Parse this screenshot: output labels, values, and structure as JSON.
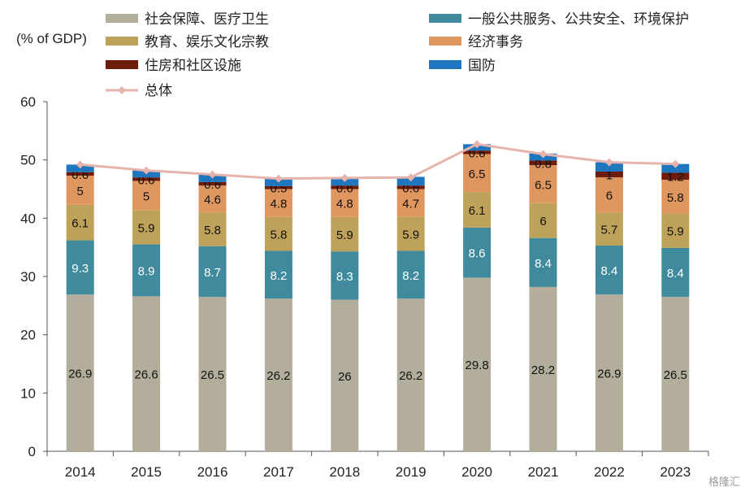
{
  "chart_data": {
    "type": "bar",
    "stacked": true,
    "ylabel": "(% of GDP)",
    "ylim": [
      0,
      60
    ],
    "yticks": [
      "0",
      "10",
      "20",
      "30",
      "40",
      "50",
      "60"
    ],
    "categories": [
      "2014",
      "2015",
      "2016",
      "2017",
      "2018",
      "2019",
      "2020",
      "2021",
      "2022",
      "2023"
    ],
    "series": [
      {
        "name": "社会保障、医疗卫生",
        "color": "#b3ae9c",
        "values": [
          26.9,
          26.6,
          26.5,
          26.2,
          26,
          26.2,
          29.8,
          28.2,
          26.9,
          26.5
        ],
        "labels": [
          "26.9",
          "26.6",
          "26.5",
          "26.2",
          "26",
          "26.2",
          "29.8",
          "28.2",
          "26.9",
          "26.5"
        ]
      },
      {
        "name": "一般公共服务、公共安全、环境保护",
        "color": "#3f8a9d",
        "values": [
          9.3,
          8.9,
          8.7,
          8.2,
          8.3,
          8.2,
          8.6,
          8.4,
          8.4,
          8.4
        ],
        "labels": [
          "9.3",
          "8.9",
          "8.7",
          "8.2",
          "8.3",
          "8.2",
          "8.6",
          "8.4",
          "8.4",
          "8.4"
        ]
      },
      {
        "name": "教育、娱乐文化宗教",
        "color": "#bea25a",
        "values": [
          6.1,
          5.9,
          5.8,
          5.8,
          5.9,
          5.9,
          6.1,
          6,
          5.7,
          5.9
        ],
        "labels": [
          "6.1",
          "5.9",
          "5.8",
          "5.8",
          "5.9",
          "5.9",
          "6.1",
          "6",
          "5.7",
          "5.9"
        ]
      },
      {
        "name": "经济事务",
        "color": "#e0975f",
        "values": [
          5,
          5,
          4.6,
          4.8,
          4.8,
          4.7,
          6.5,
          6.5,
          6,
          5.8
        ],
        "labels": [
          "5",
          "5",
          "4.6",
          "4.8",
          "4.8",
          "4.7",
          "6.5",
          "6.5",
          "6",
          "5.8"
        ]
      },
      {
        "name": "住房和社区设施",
        "color": "#6e1d0c",
        "values": [
          0.6,
          0.6,
          0.6,
          0.5,
          0.6,
          0.6,
          0.6,
          0.8,
          1,
          1.2
        ],
        "labels": [
          "0.6",
          "0.6",
          "0.6",
          "0.5",
          "0.6",
          "0.6",
          "0.6",
          "0.8",
          "1",
          "1.2"
        ]
      },
      {
        "name": "国防",
        "color": "#1f77bf",
        "values": [
          1.3,
          1.2,
          1.3,
          1.3,
          1.3,
          1.5,
          1.1,
          1.2,
          1.6,
          1.5
        ]
      }
    ],
    "line": {
      "name": "总体",
      "color": "#e7b4ad",
      "values": [
        49.2,
        48.2,
        47.5,
        46.8,
        46.9,
        47,
        52.7,
        51,
        49.6,
        49.3
      ]
    },
    "legend_position": "top"
  },
  "watermark": "格隆汇"
}
